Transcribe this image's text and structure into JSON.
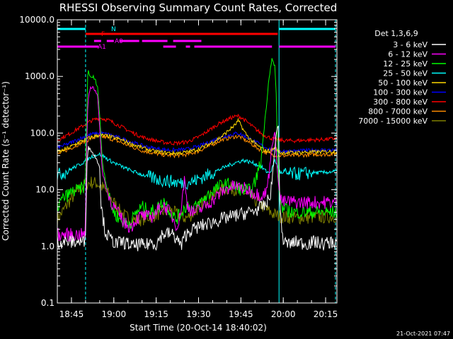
{
  "chart_data": {
    "type": "line",
    "title": "RHESSI Observing Summary Count Rates, Corrected",
    "xlabel": "Start Time (20-Oct-14 18:40:02)",
    "ylabel": "Corrected Count Rate (s⁻¹ detector⁻¹)",
    "yscale": "log",
    "ylim": [
      0.1,
      10000
    ],
    "xlim": [
      0,
      99
    ],
    "y_ticks": [
      "0.1",
      "1.0",
      "10.0",
      "100.0",
      "1000.0",
      "10000.0"
    ],
    "x_ticks": [
      {
        "t": 5,
        "label": "18:45"
      },
      {
        "t": 20,
        "label": "19:00"
      },
      {
        "t": 35,
        "label": "19:15"
      },
      {
        "t": 50,
        "label": "19:30"
      },
      {
        "t": 65,
        "label": "19:45"
      },
      {
        "t": 80,
        "label": "20:00"
      },
      {
        "t": 95,
        "label": "20:15"
      }
    ],
    "legend_title": "Det 1,3,6,9",
    "legend_position": "right",
    "night_boundaries": [
      0,
      78.5
    ],
    "saa_boundaries": [
      10,
      98.5
    ],
    "series": [
      {
        "name": "3 - 6 keV",
        "color": "#ffffff",
        "x": [
          0,
          9.9,
          10.5,
          11,
          12,
          13,
          14,
          15,
          15.5,
          17,
          19,
          21,
          23,
          25,
          27,
          29,
          31,
          33,
          35,
          37,
          39,
          41,
          43,
          44,
          45,
          47,
          50,
          53,
          56,
          60,
          64,
          67,
          70,
          72,
          74,
          75,
          76,
          77,
          77.5,
          78,
          78.4,
          78.6,
          79,
          80,
          82,
          85,
          88,
          91,
          94,
          98
        ],
        "y": [
          1.2,
          1.2,
          35,
          55,
          50,
          40,
          35,
          25,
          5,
          1.8,
          1.3,
          1.1,
          1.2,
          1.1,
          1.0,
          1.1,
          1.0,
          1.2,
          1.1,
          1.6,
          1.7,
          1.6,
          1.2,
          1.0,
          1.5,
          1.9,
          2.2,
          2.5,
          2.8,
          3.2,
          3.6,
          3.9,
          4.3,
          4.8,
          5.5,
          7.0,
          12,
          60,
          90,
          130,
          150,
          6,
          4.0,
          1.2,
          1.1,
          1.2,
          1.1,
          1.2,
          1.1,
          1.2
        ]
      },
      {
        "name": "6 - 12 keV",
        "color": "#ff00ff",
        "x": [
          0,
          9.9,
          10.3,
          10.8,
          11.2,
          11.8,
          12.6,
          13.4,
          14.2,
          15,
          16,
          18,
          20,
          22,
          24,
          26,
          28,
          30,
          33,
          36,
          38,
          40,
          42,
          43,
          44,
          45,
          46,
          48,
          50,
          52,
          55,
          58,
          61,
          63,
          66,
          69,
          72,
          74,
          75,
          76,
          77,
          77.5,
          78,
          78.5,
          79,
          80,
          82,
          85,
          88,
          91,
          94,
          98
        ],
        "y": [
          1.6,
          1.6,
          30,
          350,
          520,
          630,
          650,
          580,
          480,
          120,
          20,
          8,
          5,
          3.5,
          2.5,
          2.2,
          3.0,
          3.5,
          3.2,
          4.5,
          5.2,
          3.8,
          2.5,
          2.5,
          6.0,
          15,
          5.5,
          4.0,
          4.3,
          5.0,
          6.5,
          9,
          11,
          11.5,
          10.5,
          9,
          8,
          9,
          20,
          60,
          100,
          50,
          20,
          10,
          7,
          6,
          6.2,
          6.0,
          6.0,
          6.0,
          6.0,
          6.0
        ]
      },
      {
        "name": "12 - 25 keV",
        "color": "#00ff00",
        "x": [
          0,
          2,
          5,
          8,
          9.9,
          10.3,
          10.8,
          11.2,
          11.8,
          12.6,
          13.4,
          14.2,
          15,
          16,
          18,
          20,
          22,
          24,
          26,
          28,
          30,
          33,
          36,
          38,
          40,
          42,
          44,
          46,
          48,
          50,
          52,
          55,
          58,
          61,
          63,
          66,
          69,
          72,
          74,
          75,
          76,
          77,
          77.5,
          78,
          78.5,
          79,
          80,
          82,
          85,
          88,
          91,
          94,
          98
        ],
        "y": [
          5,
          7,
          9,
          10,
          12,
          100,
          1300,
          1200,
          900,
          1000,
          850,
          700,
          200,
          30,
          8,
          4,
          3,
          2.5,
          2.7,
          4.0,
          5.0,
          4.0,
          5.0,
          6.5,
          4.0,
          3.0,
          4.0,
          5.5,
          4.5,
          5.5,
          7.0,
          9.5,
          12,
          12.5,
          11,
          10,
          9.5,
          30,
          300,
          1000,
          2000,
          1500,
          500,
          50,
          10,
          6,
          4.5,
          4.2,
          4.0,
          4.0,
          4.0,
          4.0,
          4.0
        ]
      },
      {
        "name": "25 - 50 keV",
        "color": "#00ffff",
        "x": [
          0,
          4,
          8,
          11,
          12,
          13,
          14,
          15,
          16,
          17,
          18,
          20,
          24,
          28,
          32,
          36,
          40,
          44,
          48,
          52,
          56,
          60,
          63,
          66,
          69,
          72,
          74,
          75,
          76,
          77,
          77.5,
          78,
          78.5,
          79,
          80,
          82,
          86,
          90,
          94,
          98
        ],
        "y": [
          18,
          22,
          28,
          35,
          38,
          40,
          42,
          42,
          40,
          37,
          34,
          30,
          24,
          20,
          17,
          15,
          14,
          13,
          14,
          17,
          21,
          26,
          30,
          33,
          30,
          26,
          21,
          20,
          23,
          33,
          30,
          25,
          22,
          20,
          19,
          19,
          19,
          20,
          20,
          21
        ]
      },
      {
        "name": "50 - 100 keV",
        "color": "#ffd700",
        "x": [
          0,
          4,
          8,
          12,
          15,
          18,
          22,
          26,
          30,
          34,
          38,
          42,
          46,
          50,
          54,
          58,
          61,
          63,
          64,
          65,
          66,
          68,
          70,
          72,
          74,
          76,
          77,
          78,
          79,
          80,
          84,
          88,
          92,
          96,
          98
        ],
        "y": [
          45,
          55,
          70,
          85,
          92,
          88,
          78,
          65,
          55,
          48,
          45,
          44,
          46,
          52,
          65,
          85,
          115,
          140,
          165,
          140,
          110,
          80,
          65,
          55,
          48,
          50,
          55,
          50,
          45,
          45,
          45,
          46,
          46,
          47,
          47
        ]
      },
      {
        "name": "100 - 300 keV",
        "color": "#0000ff",
        "x": [
          0,
          4,
          8,
          12,
          15,
          18,
          22,
          26,
          30,
          34,
          38,
          42,
          46,
          50,
          54,
          58,
          62,
          64,
          65,
          66,
          68,
          70,
          72,
          74,
          76,
          77,
          78,
          79,
          80,
          84,
          88,
          92,
          96,
          98
        ],
        "y": [
          55,
          65,
          80,
          95,
          100,
          95,
          82,
          70,
          60,
          54,
          51,
          50,
          52,
          58,
          70,
          85,
          95,
          100,
          95,
          90,
          80,
          70,
          62,
          55,
          52,
          50,
          49,
          48,
          48,
          48,
          49,
          50,
          50,
          50
        ]
      },
      {
        "name": "300 - 800 keV",
        "color": "#ff0000",
        "x": [
          0,
          4,
          8,
          12,
          15,
          18,
          22,
          26,
          30,
          34,
          38,
          42,
          46,
          50,
          54,
          58,
          62,
          64,
          65,
          66,
          68,
          70,
          72,
          74,
          76,
          77,
          78,
          79,
          80,
          84,
          88,
          92,
          96,
          98
        ],
        "y": [
          75,
          95,
          125,
          165,
          185,
          170,
          135,
          105,
          85,
          75,
          68,
          66,
          70,
          85,
          115,
          155,
          190,
          200,
          190,
          175,
          145,
          120,
          100,
          88,
          80,
          78,
          76,
          75,
          74,
          73,
          75,
          76,
          78,
          80
        ]
      },
      {
        "name": "800 - 7000 keV",
        "color": "#ff8c00",
        "x": [
          0,
          4,
          8,
          12,
          15,
          18,
          22,
          26,
          30,
          34,
          38,
          42,
          46,
          50,
          54,
          58,
          62,
          64,
          65,
          66,
          68,
          70,
          72,
          74,
          76,
          77,
          78,
          79,
          80,
          84,
          88,
          92,
          96,
          98
        ],
        "y": [
          42,
          52,
          65,
          80,
          88,
          82,
          70,
          58,
          49,
          44,
          41,
          40,
          42,
          48,
          60,
          75,
          85,
          88,
          84,
          78,
          68,
          58,
          50,
          45,
          42,
          41,
          40,
          40,
          40,
          40,
          41,
          42,
          42,
          43
        ]
      },
      {
        "name": "7000 - 15000 keV",
        "color": "#808000",
        "x": [
          0,
          2,
          4,
          6,
          8,
          10,
          12,
          14,
          16,
          18,
          20,
          22,
          24,
          26,
          28,
          30,
          33,
          36,
          38,
          40,
          42,
          44,
          46,
          48,
          50,
          52,
          54,
          56,
          58,
          60,
          62,
          64,
          66,
          68,
          70,
          72,
          74,
          76,
          78,
          80,
          84,
          88,
          92,
          96,
          98
        ],
        "y": [
          3.0,
          4.2,
          6.0,
          8.0,
          10.5,
          12.5,
          13.5,
          13.0,
          11.0,
          8.5,
          6.0,
          4.3,
          3.4,
          3.0,
          2.9,
          3.0,
          3.4,
          3.8,
          4.2,
          4.3,
          3.8,
          3.2,
          3.2,
          3.8,
          4.8,
          6.2,
          7.5,
          8.8,
          9.8,
          10.5,
          10.5,
          10.0,
          9.0,
          7.8,
          6.5,
          5.5,
          4.5,
          3.8,
          3.5,
          3.3,
          3.2,
          3.2,
          3.3,
          3.3,
          3.4
        ]
      }
    ],
    "flag_labels": {
      "night": "N",
      "flare": "F",
      "attenuator0": "A0",
      "attenuator1": "A1"
    },
    "flag_bars": [
      {
        "name": "night",
        "color": "#00ffff",
        "segments": [
          [
            0,
            10
          ],
          [
            78.5,
            98.5
          ]
        ]
      },
      {
        "name": "flare",
        "color": "#ff0000",
        "segments": [
          [
            10,
            78
          ]
        ]
      },
      {
        "name": "attenuator0",
        "color": "#ff00ff",
        "segments": [
          [
            13,
            15.5
          ],
          [
            17.5,
            20
          ],
          [
            22,
            29
          ],
          [
            30,
            39
          ],
          [
            41,
            51
          ]
        ]
      },
      {
        "name": "attenuator1",
        "color": "#ff00ff",
        "segments": [
          [
            0,
            10
          ],
          [
            10,
            14.5
          ],
          [
            37.5,
            42
          ],
          [
            45.5,
            47
          ],
          [
            48.5,
            76
          ],
          [
            78.5,
            98.5
          ]
        ]
      }
    ]
  },
  "timestamp": "21-Oct-2021 07:47"
}
